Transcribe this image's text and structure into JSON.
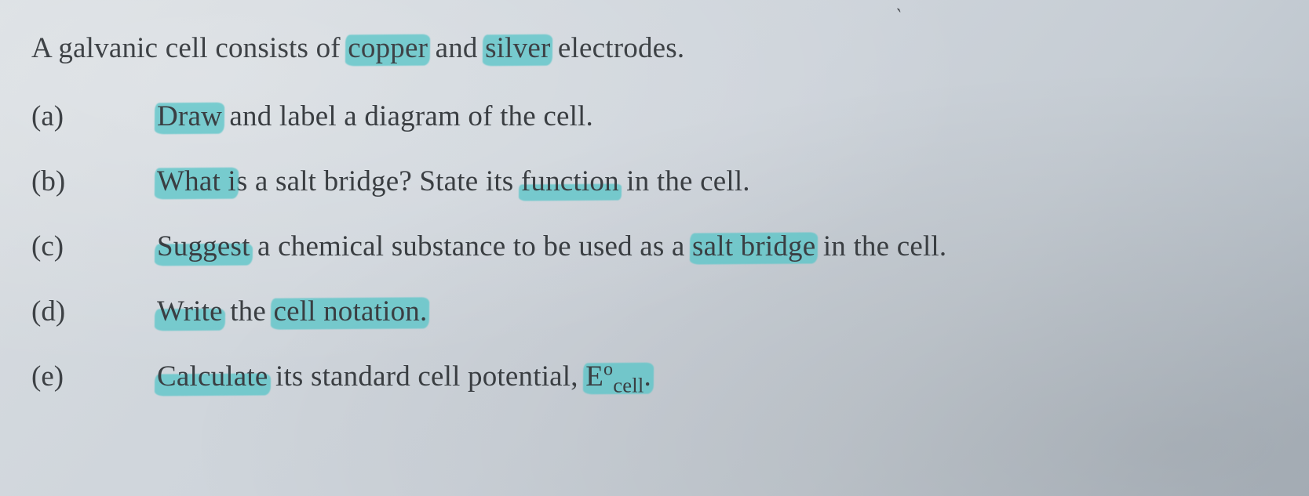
{
  "highlight_color": "#5cc6c9",
  "text_color": "#3a3e42",
  "background_gradient": [
    "#d8dde1",
    "#b2bbc4"
  ],
  "font_family": "Times New Roman",
  "font_size_pt": 28,
  "tick_mark": "`",
  "intro": {
    "pre1": "A galvanic cell consists of ",
    "hl1": "copper",
    "mid1": " and ",
    "hl2": "silver",
    "post1": " electrodes."
  },
  "items": [
    {
      "label": "(a)",
      "parts": [
        {
          "hl": "Draw",
          "style": "full"
        },
        {
          "text": " and label a diagram of the cell."
        }
      ]
    },
    {
      "label": "(b)",
      "parts": [
        {
          "hl": "What i",
          "style": "full"
        },
        {
          "text": "s a salt bridge? State its "
        },
        {
          "hl": "function",
          "style": "thin"
        },
        {
          "text": " in the cell."
        }
      ]
    },
    {
      "label": "(c)",
      "parts": [
        {
          "hl": "Suggest",
          "style": "low"
        },
        {
          "text": " a chemical substance to be used as a "
        },
        {
          "hl": "salt bridge",
          "style": "full"
        },
        {
          "text": " in the cell."
        }
      ]
    },
    {
      "label": "(d)",
      "parts": [
        {
          "hl": "Write",
          "style": "low"
        },
        {
          "text": " the "
        },
        {
          "hl": "cell notation.",
          "style": "full"
        }
      ]
    },
    {
      "label": "(e)",
      "parts": [
        {
          "hl": "Calculate",
          "style": "low"
        },
        {
          "text": " its standard cell potential, "
        },
        {
          "hl_html": "E<span class=\"sup\">o</span><span class=\"sub\">cell</span>.",
          "style": "full"
        }
      ]
    }
  ]
}
